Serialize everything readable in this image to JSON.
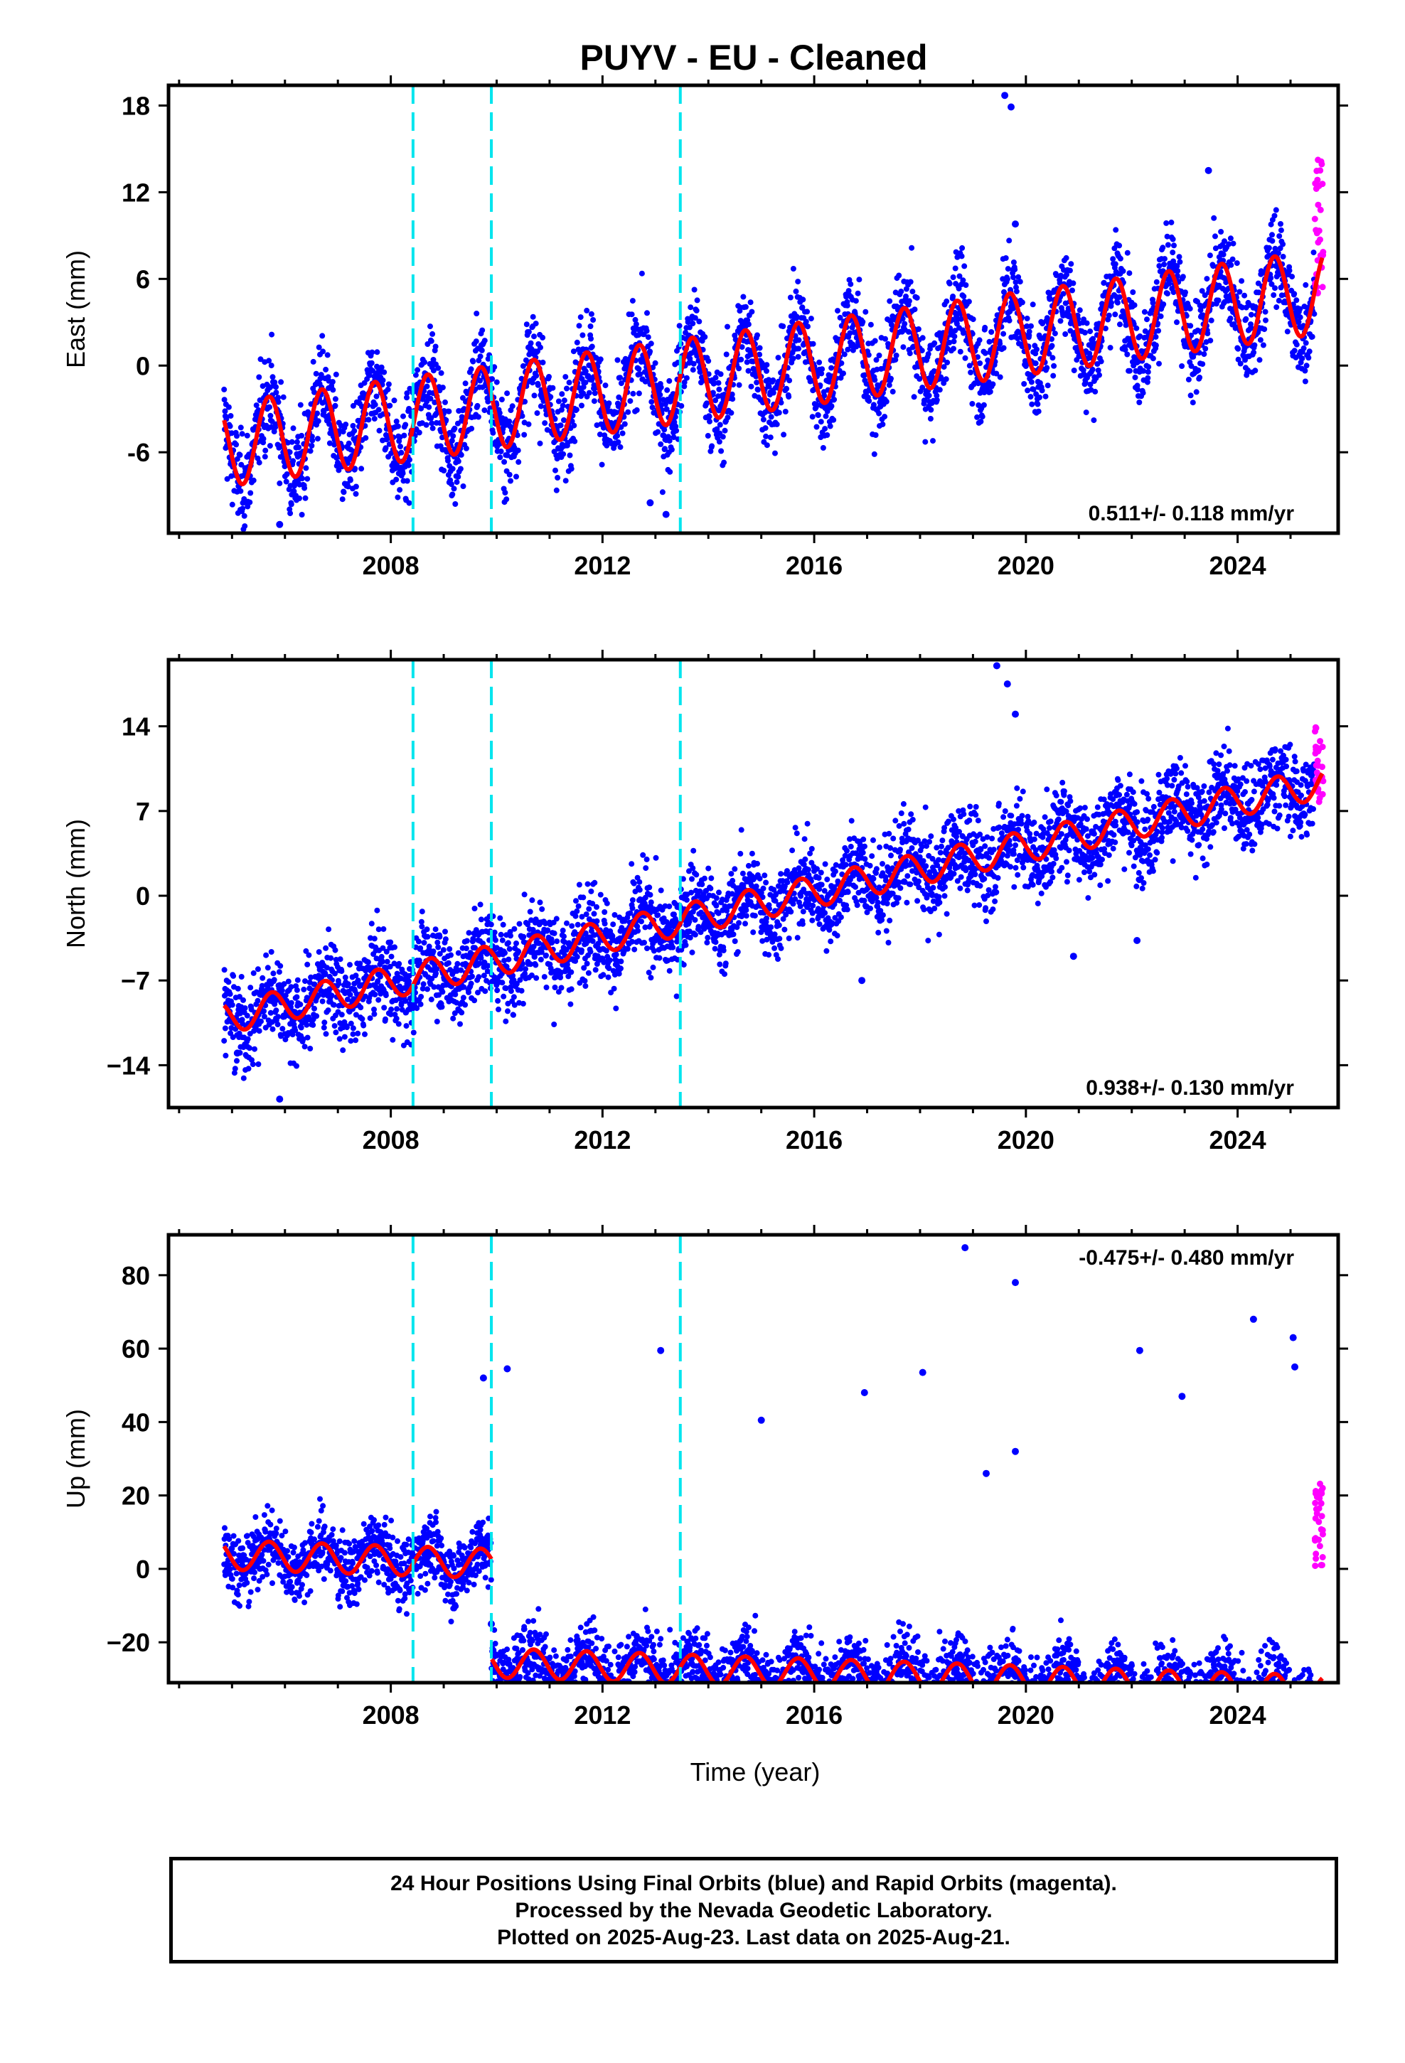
{
  "title": "PUYV  - EU - Cleaned",
  "footer": {
    "line1": "24 Hour Positions Using Final Orbits (blue) and Rapid Orbits (magenta).",
    "line2": "Processed by the Nevada Geodetic Laboratory.",
    "line3": "Plotted on 2025-Aug-23. Last data on 2025-Aug-21."
  },
  "colors": {
    "final_orbits": "#0000ff",
    "rapid_orbits": "#ff00ff",
    "model_fit": "#ff0000",
    "breaks": "#00e5ee"
  },
  "xlabel": "Time (year)",
  "chart_data": [
    {
      "type": "scatter",
      "panel": "east",
      "ylabel": "East (mm)",
      "xlim": [
        2003.8,
        2025.9
      ],
      "ylim": [
        -11.6,
        19.4
      ],
      "xticks": [
        2008,
        2012,
        2016,
        2020,
        2024
      ],
      "xtick_labels": [
        "2008",
        "2012",
        "2016",
        "2020",
        "2024"
      ],
      "yticks": [
        -6,
        0,
        6,
        12,
        18
      ],
      "ytick_labels": [
        "-6",
        "0",
        "6",
        "12",
        "18"
      ],
      "rate_label": "0.511+/- 0.118 mm/yr",
      "rate_position": "bottom-right",
      "break_years": [
        2008.42,
        2009.9,
        2013.47
      ],
      "model": {
        "offset_at_2015": -0.3,
        "trend_mm_per_yr": 0.511,
        "annual_amplitude": 2.9,
        "annual_phase": 0.45,
        "steps": [],
        "scatter_sd": 1.6
      },
      "rapid_range": [
        5.0,
        14.6
      ],
      "outliers": [
        [
          2019.6,
          18.7
        ],
        [
          2019.72,
          17.9
        ],
        [
          2012.9,
          -9.5
        ],
        [
          2005.9,
          -11.0
        ],
        [
          2013.2,
          -10.3
        ],
        [
          2019.8,
          9.8
        ],
        [
          2023.45,
          13.5
        ]
      ]
    },
    {
      "type": "scatter",
      "panel": "north",
      "ylabel": "North (mm)",
      "xlim": [
        2003.8,
        2025.9
      ],
      "ylim": [
        -17.5,
        19.5
      ],
      "xticks": [
        2008,
        2012,
        2016,
        2020,
        2024
      ],
      "xtick_labels": [
        "2008",
        "2012",
        "2016",
        "2020",
        "2024"
      ],
      "yticks": [
        -14,
        -7,
        0,
        7,
        14
      ],
      "ytick_labels": [
        "−14",
        "−7",
        "0",
        "7",
        "14"
      ],
      "rate_label": "0.938+/- 0.130 mm/yr",
      "rate_position": "bottom-right",
      "break_years": [
        2008.42,
        2009.9,
        2013.47
      ],
      "model": {
        "offset_at_2015": -0.6,
        "trend_mm_per_yr": 0.938,
        "annual_amplitude": 1.3,
        "annual_phase": 0.5,
        "steps": [],
        "scatter_sd": 1.8
      },
      "rapid_range": [
        7.5,
        14.0
      ],
      "outliers": [
        [
          2019.45,
          19.0
        ],
        [
          2019.65,
          17.5
        ],
        [
          2019.8,
          15.0
        ],
        [
          2005.9,
          -16.8
        ],
        [
          2020.9,
          -5.0
        ],
        [
          2022.1,
          -3.7
        ],
        [
          2005.1,
          -13.0
        ],
        [
          2016.9,
          -7.0
        ]
      ]
    },
    {
      "type": "scatter",
      "panel": "up",
      "ylabel": "Up (mm)",
      "xlim": [
        2003.8,
        2025.9
      ],
      "ylim": [
        -31,
        91
      ],
      "xticks": [
        2008,
        2012,
        2016,
        2020,
        2024
      ],
      "xtick_labels": [
        "2008",
        "2012",
        "2016",
        "2020",
        "2024"
      ],
      "yticks": [
        -20,
        0,
        20,
        40,
        60,
        80
      ],
      "ytick_labels": [
        "−20",
        "0",
        "20",
        "40",
        "60",
        "80"
      ],
      "rate_label": "-0.475+/- 0.480 mm/yr",
      "rate_position": "top-right",
      "break_years": [
        2008.42,
        2009.9,
        2013.47
      ],
      "model": {
        "offset_at_2015": -1.0,
        "trend_mm_per_yr": -0.475,
        "annual_amplitude": 4.0,
        "annual_phase": 0.45,
        "steps": [
          [
            2009.9,
            -27.0
          ]
        ],
        "scatter_sd": 4.5
      },
      "rapid_range": [
        -2.0,
        25.0
      ],
      "outliers": [
        [
          2018.85,
          87.5
        ],
        [
          2019.8,
          78.0
        ],
        [
          2024.3,
          68.0
        ],
        [
          2025.05,
          63.0
        ],
        [
          2025.08,
          55.0
        ],
        [
          2013.1,
          59.5
        ],
        [
          2022.15,
          59.5
        ],
        [
          2009.75,
          52.0
        ],
        [
          2010.2,
          54.5
        ],
        [
          2018.05,
          53.5
        ],
        [
          2016.95,
          48.0
        ],
        [
          2015.0,
          40.5
        ],
        [
          2022.95,
          47.0
        ],
        [
          2019.25,
          26.0
        ],
        [
          2019.8,
          32.0
        ],
        [
          2009.9,
          -15.0
        ],
        [
          2016.05,
          -28.0
        ]
      ]
    }
  ]
}
